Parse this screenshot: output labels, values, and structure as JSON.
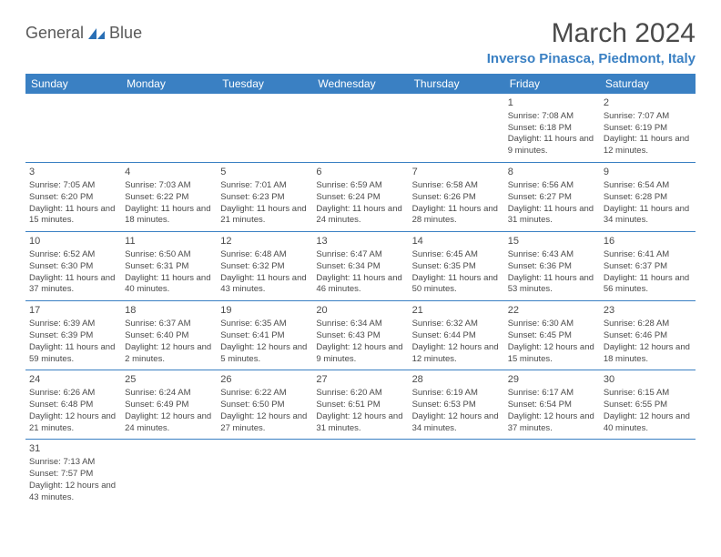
{
  "header": {
    "logo_general": "General",
    "logo_blue": "Blue",
    "logo_color_general": "#5a5a5a",
    "logo_color_blue": "#2a6fb5",
    "month_title": "March 2024",
    "location": "Inverso Pinasca, Piedmont, Italy"
  },
  "colors": {
    "header_bg": "#3a80c3",
    "header_text": "#ffffff",
    "border": "#3a80c3",
    "text": "#4a4a4a",
    "location_color": "#3a80c3"
  },
  "weekdays": [
    "Sunday",
    "Monday",
    "Tuesday",
    "Wednesday",
    "Thursday",
    "Friday",
    "Saturday"
  ],
  "weeks": [
    [
      null,
      null,
      null,
      null,
      null,
      {
        "day": "1",
        "sunrise": "7:08 AM",
        "sunset": "6:18 PM",
        "daylight": "11 hours and 9 minutes."
      },
      {
        "day": "2",
        "sunrise": "7:07 AM",
        "sunset": "6:19 PM",
        "daylight": "11 hours and 12 minutes."
      }
    ],
    [
      {
        "day": "3",
        "sunrise": "7:05 AM",
        "sunset": "6:20 PM",
        "daylight": "11 hours and 15 minutes."
      },
      {
        "day": "4",
        "sunrise": "7:03 AM",
        "sunset": "6:22 PM",
        "daylight": "11 hours and 18 minutes."
      },
      {
        "day": "5",
        "sunrise": "7:01 AM",
        "sunset": "6:23 PM",
        "daylight": "11 hours and 21 minutes."
      },
      {
        "day": "6",
        "sunrise": "6:59 AM",
        "sunset": "6:24 PM",
        "daylight": "11 hours and 24 minutes."
      },
      {
        "day": "7",
        "sunrise": "6:58 AM",
        "sunset": "6:26 PM",
        "daylight": "11 hours and 28 minutes."
      },
      {
        "day": "8",
        "sunrise": "6:56 AM",
        "sunset": "6:27 PM",
        "daylight": "11 hours and 31 minutes."
      },
      {
        "day": "9",
        "sunrise": "6:54 AM",
        "sunset": "6:28 PM",
        "daylight": "11 hours and 34 minutes."
      }
    ],
    [
      {
        "day": "10",
        "sunrise": "6:52 AM",
        "sunset": "6:30 PM",
        "daylight": "11 hours and 37 minutes."
      },
      {
        "day": "11",
        "sunrise": "6:50 AM",
        "sunset": "6:31 PM",
        "daylight": "11 hours and 40 minutes."
      },
      {
        "day": "12",
        "sunrise": "6:48 AM",
        "sunset": "6:32 PM",
        "daylight": "11 hours and 43 minutes."
      },
      {
        "day": "13",
        "sunrise": "6:47 AM",
        "sunset": "6:34 PM",
        "daylight": "11 hours and 46 minutes."
      },
      {
        "day": "14",
        "sunrise": "6:45 AM",
        "sunset": "6:35 PM",
        "daylight": "11 hours and 50 minutes."
      },
      {
        "day": "15",
        "sunrise": "6:43 AM",
        "sunset": "6:36 PM",
        "daylight": "11 hours and 53 minutes."
      },
      {
        "day": "16",
        "sunrise": "6:41 AM",
        "sunset": "6:37 PM",
        "daylight": "11 hours and 56 minutes."
      }
    ],
    [
      {
        "day": "17",
        "sunrise": "6:39 AM",
        "sunset": "6:39 PM",
        "daylight": "11 hours and 59 minutes."
      },
      {
        "day": "18",
        "sunrise": "6:37 AM",
        "sunset": "6:40 PM",
        "daylight": "12 hours and 2 minutes."
      },
      {
        "day": "19",
        "sunrise": "6:35 AM",
        "sunset": "6:41 PM",
        "daylight": "12 hours and 5 minutes."
      },
      {
        "day": "20",
        "sunrise": "6:34 AM",
        "sunset": "6:43 PM",
        "daylight": "12 hours and 9 minutes."
      },
      {
        "day": "21",
        "sunrise": "6:32 AM",
        "sunset": "6:44 PM",
        "daylight": "12 hours and 12 minutes."
      },
      {
        "day": "22",
        "sunrise": "6:30 AM",
        "sunset": "6:45 PM",
        "daylight": "12 hours and 15 minutes."
      },
      {
        "day": "23",
        "sunrise": "6:28 AM",
        "sunset": "6:46 PM",
        "daylight": "12 hours and 18 minutes."
      }
    ],
    [
      {
        "day": "24",
        "sunrise": "6:26 AM",
        "sunset": "6:48 PM",
        "daylight": "12 hours and 21 minutes."
      },
      {
        "day": "25",
        "sunrise": "6:24 AM",
        "sunset": "6:49 PM",
        "daylight": "12 hours and 24 minutes."
      },
      {
        "day": "26",
        "sunrise": "6:22 AM",
        "sunset": "6:50 PM",
        "daylight": "12 hours and 27 minutes."
      },
      {
        "day": "27",
        "sunrise": "6:20 AM",
        "sunset": "6:51 PM",
        "daylight": "12 hours and 31 minutes."
      },
      {
        "day": "28",
        "sunrise": "6:19 AM",
        "sunset": "6:53 PM",
        "daylight": "12 hours and 34 minutes."
      },
      {
        "day": "29",
        "sunrise": "6:17 AM",
        "sunset": "6:54 PM",
        "daylight": "12 hours and 37 minutes."
      },
      {
        "day": "30",
        "sunrise": "6:15 AM",
        "sunset": "6:55 PM",
        "daylight": "12 hours and 40 minutes."
      }
    ],
    [
      {
        "day": "31",
        "sunrise": "7:13 AM",
        "sunset": "7:57 PM",
        "daylight": "12 hours and 43 minutes."
      },
      null,
      null,
      null,
      null,
      null,
      null
    ]
  ],
  "labels": {
    "sunrise_prefix": "Sunrise: ",
    "sunset_prefix": "Sunset: ",
    "daylight_prefix": "Daylight: "
  }
}
